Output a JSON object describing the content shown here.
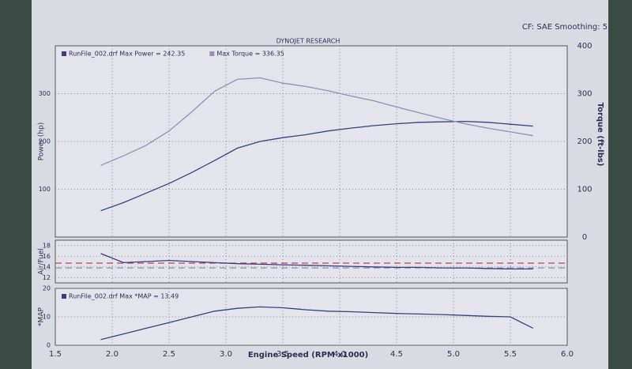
{
  "chart_data": [
    {
      "type": "line",
      "title": "DYNOJET RESEARCH",
      "subtitle": "CF: SAE  Smoothing: 5",
      "ylabel": "Power (hp)",
      "y2label": "Torque (ft-lbs)",
      "ylim": [
        0,
        400
      ],
      "yticks": [
        100,
        200,
        300
      ],
      "y2lim": [
        0,
        400
      ],
      "y2ticks": [
        0,
        100,
        200,
        300,
        400
      ],
      "grid": true,
      "x": [
        1.9,
        2.1,
        2.3,
        2.5,
        2.7,
        2.9,
        3.1,
        3.3,
        3.5,
        3.7,
        3.9,
        4.1,
        4.3,
        4.5,
        4.7,
        4.9,
        5.1,
        5.3,
        5.5,
        5.7
      ],
      "series": [
        {
          "name": "RunFile_002.drf Max Power = 242.35",
          "color": "#3a3f7e",
          "values": [
            55,
            72,
            92,
            112,
            135,
            160,
            186,
            200,
            208,
            214,
            222,
            228,
            233,
            237,
            240,
            241,
            242,
            240,
            236,
            232
          ]
        },
        {
          "name": "Max Torque = 336.35",
          "color": "#8d92b8",
          "axis": "y2",
          "values": [
            150,
            170,
            192,
            222,
            262,
            305,
            330,
            333,
            322,
            315,
            306,
            295,
            285,
            272,
            260,
            248,
            237,
            228,
            220,
            212
          ]
        }
      ]
    },
    {
      "type": "line",
      "ylabel": "Air/Fuel",
      "ylim": [
        11,
        19
      ],
      "yticks": [
        12,
        14,
        16,
        18
      ],
      "grid": true,
      "x": [
        1.9,
        2.1,
        2.3,
        2.5,
        2.7,
        2.9,
        3.1,
        3.3,
        3.5,
        3.7,
        3.9,
        4.1,
        4.3,
        4.5,
        4.7,
        4.9,
        5.1,
        5.3,
        5.5,
        5.7
      ],
      "series": [
        {
          "color": "#3a3f7e",
          "values": [
            16.5,
            14.8,
            15.0,
            15.2,
            15.0,
            14.8,
            14.6,
            14.5,
            14.4,
            14.3,
            14.2,
            14.1,
            14.0,
            13.9,
            13.9,
            13.8,
            13.8,
            13.7,
            13.6,
            13.6
          ]
        }
      ],
      "reference_lines": [
        {
          "value": 14.7,
          "color": "#c0404a"
        },
        {
          "value": 13.8,
          "color": "#8d92b8"
        }
      ]
    },
    {
      "type": "line",
      "ylabel": "*MAP",
      "xlabel": "Engine Speed (RPM x1000)",
      "xlim": [
        1.5,
        6.0
      ],
      "xticks": [
        {
          "value": 1.5,
          "label": "1.5"
        },
        {
          "value": 2,
          "label": "2.0"
        },
        {
          "value": 2.5,
          "label": "2.5"
        },
        {
          "value": 3,
          "label": "3.0"
        },
        {
          "value": 3.5,
          "label": "3.5"
        },
        {
          "value": 4,
          "label": "4.0"
        },
        {
          "value": 4.5,
          "label": "4.5"
        },
        {
          "value": 5,
          "label": "5.0"
        },
        {
          "value": 5.5,
          "label": "5.5"
        },
        {
          "value": 6,
          "label": "6.0"
        }
      ],
      "ylim": [
        0,
        20
      ],
      "yticks": [
        0,
        10,
        20
      ],
      "grid": true,
      "x": [
        1.9,
        2.1,
        2.3,
        2.5,
        2.7,
        2.9,
        3.1,
        3.3,
        3.5,
        3.7,
        3.9,
        4.1,
        4.3,
        4.5,
        4.7,
        4.9,
        5.1,
        5.3,
        5.5,
        5.7
      ],
      "series": [
        {
          "name": "RunFile_002.drf Max *MAP = 13.49",
          "color": "#3a3f7e",
          "values": [
            2,
            4,
            6,
            8,
            10,
            12,
            13,
            13.5,
            13.2,
            12.5,
            12,
            11.8,
            11.5,
            11.2,
            11,
            10.8,
            10.5,
            10.2,
            10,
            6
          ]
        }
      ]
    }
  ]
}
